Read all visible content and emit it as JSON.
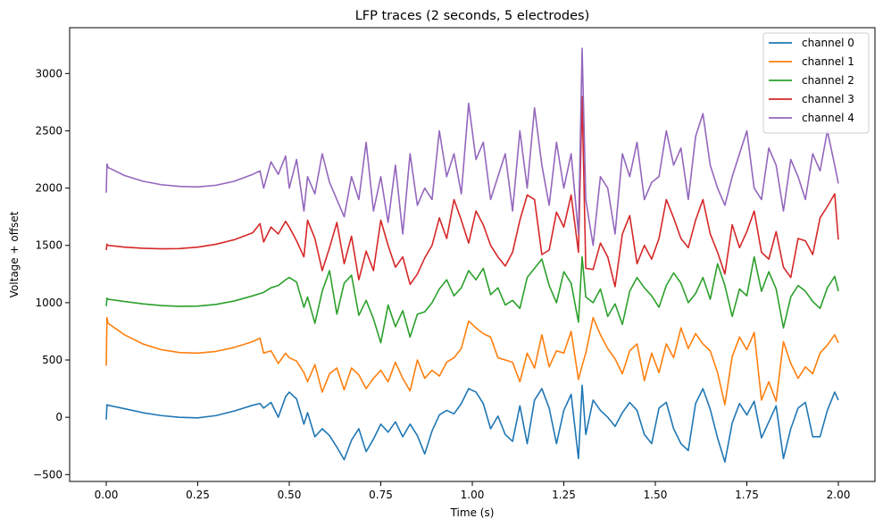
{
  "chart_data": {
    "type": "line",
    "title": "LFP traces (2 seconds, 5 electrodes)",
    "xlabel": "Time (s)",
    "ylabel": "Voltage + offset",
    "xlim": [
      -0.1,
      2.1
    ],
    "ylim": [
      -560,
      3400
    ],
    "xticks": [
      0.0,
      0.25,
      0.5,
      0.75,
      1.0,
      1.25,
      1.5,
      1.75,
      2.0
    ],
    "xtick_labels": [
      "0.00",
      "0.25",
      "0.50",
      "0.75",
      "1.00",
      "1.25",
      "1.50",
      "1.75",
      "2.00"
    ],
    "yticks": [
      -500,
      0,
      500,
      1000,
      1500,
      2000,
      2500,
      3000
    ],
    "ytick_labels": [
      "−500",
      "0",
      "500",
      "1000",
      "1500",
      "2000",
      "2500",
      "3000"
    ],
    "grid": false,
    "legend_position": "top-right",
    "series": [
      {
        "name": "channel 0",
        "color": "#1f77b4",
        "x": [
          0.0,
          0.002,
          0.005,
          0.05,
          0.1,
          0.15,
          0.2,
          0.25,
          0.3,
          0.35,
          0.4,
          0.42,
          0.43,
          0.45,
          0.47,
          0.49,
          0.5,
          0.52,
          0.54,
          0.55,
          0.57,
          0.59,
          0.61,
          0.63,
          0.65,
          0.67,
          0.69,
          0.71,
          0.73,
          0.75,
          0.77,
          0.79,
          0.81,
          0.83,
          0.85,
          0.87,
          0.89,
          0.91,
          0.93,
          0.95,
          0.97,
          0.99,
          1.01,
          1.03,
          1.05,
          1.07,
          1.09,
          1.11,
          1.13,
          1.15,
          1.17,
          1.19,
          1.21,
          1.23,
          1.25,
          1.27,
          1.29,
          1.3,
          1.31,
          1.33,
          1.35,
          1.37,
          1.39,
          1.41,
          1.43,
          1.45,
          1.47,
          1.49,
          1.51,
          1.53,
          1.55,
          1.57,
          1.59,
          1.61,
          1.63,
          1.65,
          1.67,
          1.69,
          1.71,
          1.73,
          1.75,
          1.77,
          1.79,
          1.81,
          1.83,
          1.85,
          1.87,
          1.89,
          1.91,
          1.93,
          1.95,
          1.97,
          1.99,
          2.0
        ],
        "y": [
          -20,
          110,
          105,
          75,
          40,
          15,
          0,
          -5,
          15,
          55,
          105,
          120,
          80,
          130,
          0,
          180,
          220,
          160,
          -60,
          40,
          -170,
          -100,
          -160,
          -260,
          -370,
          -200,
          -100,
          -300,
          -190,
          -60,
          -130,
          -40,
          -170,
          -60,
          -160,
          -320,
          -120,
          20,
          60,
          30,
          120,
          250,
          220,
          120,
          -100,
          10,
          -150,
          -210,
          100,
          -230,
          150,
          250,
          80,
          -230,
          60,
          200,
          -360,
          280,
          -150,
          150,
          60,
          0,
          -80,
          40,
          130,
          60,
          -150,
          -230,
          80,
          130,
          -100,
          -230,
          -290,
          120,
          250,
          70,
          -180,
          -390,
          -50,
          120,
          20,
          140,
          -180,
          -40,
          100,
          -360,
          -100,
          80,
          130,
          -170,
          -170,
          60,
          220,
          150
        ]
      },
      {
        "name": "channel 1",
        "color": "#ff7f0e",
        "x": [
          0.0,
          0.002,
          0.005,
          0.05,
          0.1,
          0.15,
          0.2,
          0.25,
          0.3,
          0.35,
          0.4,
          0.42,
          0.43,
          0.45,
          0.47,
          0.49,
          0.5,
          0.52,
          0.54,
          0.55,
          0.57,
          0.59,
          0.61,
          0.63,
          0.65,
          0.67,
          0.69,
          0.71,
          0.73,
          0.75,
          0.77,
          0.79,
          0.81,
          0.83,
          0.85,
          0.87,
          0.89,
          0.91,
          0.93,
          0.95,
          0.97,
          0.99,
          1.01,
          1.03,
          1.05,
          1.07,
          1.09,
          1.11,
          1.13,
          1.15,
          1.17,
          1.19,
          1.21,
          1.23,
          1.25,
          1.27,
          1.29,
          1.3,
          1.31,
          1.33,
          1.35,
          1.37,
          1.39,
          1.41,
          1.43,
          1.45,
          1.47,
          1.49,
          1.51,
          1.53,
          1.55,
          1.57,
          1.59,
          1.61,
          1.63,
          1.65,
          1.67,
          1.69,
          1.71,
          1.73,
          1.75,
          1.77,
          1.79,
          1.81,
          1.83,
          1.85,
          1.87,
          1.89,
          1.91,
          1.93,
          1.95,
          1.97,
          1.99,
          2.0
        ],
        "y": [
          450,
          870,
          820,
          720,
          640,
          590,
          565,
          560,
          575,
          610,
          660,
          690,
          560,
          580,
          470,
          560,
          520,
          490,
          390,
          310,
          460,
          220,
          380,
          430,
          240,
          430,
          370,
          250,
          340,
          410,
          310,
          480,
          340,
          230,
          500,
          340,
          410,
          360,
          480,
          520,
          600,
          840,
          780,
          730,
          700,
          520,
          500,
          480,
          310,
          560,
          430,
          720,
          440,
          580,
          560,
          750,
          330,
          450,
          560,
          870,
          720,
          600,
          510,
          380,
          580,
          640,
          320,
          560,
          390,
          640,
          520,
          780,
          600,
          730,
          640,
          580,
          390,
          110,
          530,
          700,
          590,
          740,
          150,
          310,
          140,
          660,
          470,
          340,
          440,
          380,
          560,
          630,
          720,
          650
        ]
      },
      {
        "name": "channel 2",
        "color": "#2ca02c",
        "x": [
          0.0,
          0.002,
          0.005,
          0.05,
          0.1,
          0.15,
          0.2,
          0.25,
          0.3,
          0.35,
          0.4,
          0.42,
          0.43,
          0.45,
          0.47,
          0.49,
          0.5,
          0.52,
          0.54,
          0.55,
          0.57,
          0.59,
          0.61,
          0.63,
          0.65,
          0.67,
          0.69,
          0.71,
          0.73,
          0.75,
          0.77,
          0.79,
          0.81,
          0.83,
          0.85,
          0.87,
          0.89,
          0.91,
          0.93,
          0.95,
          0.97,
          0.99,
          1.01,
          1.03,
          1.05,
          1.07,
          1.09,
          1.11,
          1.13,
          1.15,
          1.17,
          1.19,
          1.21,
          1.23,
          1.25,
          1.27,
          1.29,
          1.3,
          1.31,
          1.33,
          1.35,
          1.37,
          1.39,
          1.41,
          1.43,
          1.45,
          1.47,
          1.49,
          1.51,
          1.53,
          1.55,
          1.57,
          1.59,
          1.61,
          1.63,
          1.65,
          1.67,
          1.69,
          1.71,
          1.73,
          1.75,
          1.77,
          1.79,
          1.81,
          1.83,
          1.85,
          1.87,
          1.89,
          1.91,
          1.93,
          1.95,
          1.97,
          1.99,
          2.0
        ],
        "y": [
          970,
          1040,
          1030,
          1010,
          990,
          975,
          968,
          970,
          985,
          1015,
          1060,
          1080,
          1090,
          1130,
          1150,
          1200,
          1220,
          1180,
          960,
          1050,
          820,
          1100,
          1280,
          900,
          1170,
          1240,
          890,
          1020,
          860,
          650,
          980,
          790,
          930,
          700,
          900,
          920,
          1000,
          1120,
          1200,
          1060,
          1130,
          1280,
          1200,
          1300,
          1070,
          1130,
          980,
          1020,
          950,
          1220,
          1300,
          1380,
          1150,
          1000,
          1270,
          1170,
          830,
          1400,
          1050,
          1000,
          1120,
          880,
          990,
          810,
          1100,
          1220,
          1130,
          1060,
          960,
          1150,
          1260,
          1170,
          1000,
          1080,
          1220,
          1030,
          1340,
          1150,
          880,
          1120,
          1060,
          1400,
          1100,
          1270,
          1120,
          780,
          1050,
          1150,
          1100,
          1010,
          950,
          1130,
          1230,
          1100
        ]
      },
      {
        "name": "channel 3",
        "color": "#d62728",
        "x": [
          0.0,
          0.002,
          0.005,
          0.05,
          0.1,
          0.15,
          0.2,
          0.25,
          0.3,
          0.35,
          0.4,
          0.42,
          0.43,
          0.45,
          0.47,
          0.49,
          0.5,
          0.52,
          0.54,
          0.55,
          0.57,
          0.59,
          0.61,
          0.63,
          0.65,
          0.67,
          0.69,
          0.71,
          0.73,
          0.75,
          0.77,
          0.79,
          0.81,
          0.83,
          0.85,
          0.87,
          0.89,
          0.91,
          0.93,
          0.95,
          0.97,
          0.99,
          1.01,
          1.03,
          1.05,
          1.07,
          1.09,
          1.11,
          1.13,
          1.15,
          1.17,
          1.19,
          1.21,
          1.23,
          1.25,
          1.27,
          1.29,
          1.3,
          1.31,
          1.33,
          1.35,
          1.37,
          1.39,
          1.41,
          1.43,
          1.45,
          1.47,
          1.49,
          1.51,
          1.53,
          1.55,
          1.57,
          1.59,
          1.61,
          1.63,
          1.65,
          1.67,
          1.69,
          1.71,
          1.73,
          1.75,
          1.77,
          1.79,
          1.81,
          1.83,
          1.85,
          1.87,
          1.89,
          1.91,
          1.93,
          1.95,
          1.97,
          1.99,
          2.0
        ],
        "y": [
          1460,
          1510,
          1500,
          1485,
          1475,
          1470,
          1472,
          1485,
          1510,
          1550,
          1610,
          1690,
          1530,
          1660,
          1600,
          1710,
          1660,
          1540,
          1400,
          1720,
          1560,
          1280,
          1480,
          1700,
          1340,
          1580,
          1200,
          1450,
          1280,
          1720,
          1500,
          1310,
          1400,
          1160,
          1250,
          1390,
          1500,
          1740,
          1560,
          1900,
          1720,
          1520,
          1800,
          1680,
          1500,
          1400,
          1320,
          1440,
          1720,
          1940,
          1900,
          1420,
          1460,
          1790,
          1660,
          1940,
          1440,
          2800,
          1300,
          1290,
          1520,
          1400,
          1140,
          1600,
          1760,
          1340,
          1500,
          1380,
          1560,
          1900,
          1740,
          1560,
          1480,
          1720,
          1900,
          1600,
          1440,
          1250,
          1680,
          1480,
          1620,
          1800,
          1440,
          1380,
          1620,
          1310,
          1220,
          1560,
          1540,
          1420,
          1740,
          1840,
          1950,
          1550
        ]
      },
      {
        "name": "channel 4",
        "color": "#9467bd",
        "x": [
          0.0,
          0.002,
          0.005,
          0.05,
          0.1,
          0.15,
          0.2,
          0.25,
          0.3,
          0.35,
          0.4,
          0.42,
          0.43,
          0.45,
          0.47,
          0.49,
          0.5,
          0.52,
          0.54,
          0.55,
          0.57,
          0.59,
          0.61,
          0.63,
          0.65,
          0.67,
          0.69,
          0.71,
          0.73,
          0.75,
          0.77,
          0.79,
          0.81,
          0.83,
          0.85,
          0.87,
          0.89,
          0.91,
          0.93,
          0.95,
          0.97,
          0.99,
          1.01,
          1.03,
          1.05,
          1.07,
          1.09,
          1.11,
          1.13,
          1.15,
          1.17,
          1.19,
          1.21,
          1.23,
          1.25,
          1.27,
          1.29,
          1.3,
          1.31,
          1.33,
          1.35,
          1.37,
          1.39,
          1.41,
          1.43,
          1.45,
          1.47,
          1.49,
          1.51,
          1.53,
          1.55,
          1.57,
          1.59,
          1.61,
          1.63,
          1.65,
          1.67,
          1.69,
          1.71,
          1.73,
          1.75,
          1.77,
          1.79,
          1.81,
          1.83,
          1.85,
          1.87,
          1.89,
          1.91,
          1.93,
          1.95,
          1.97,
          1.99,
          2.0
        ],
        "y": [
          1960,
          2210,
          2180,
          2110,
          2060,
          2030,
          2015,
          2010,
          2025,
          2060,
          2120,
          2150,
          2000,
          2230,
          2120,
          2280,
          2000,
          2250,
          1800,
          2100,
          1950,
          2300,
          2050,
          1900,
          1750,
          2100,
          1900,
          2400,
          1800,
          2100,
          1700,
          2200,
          1600,
          2300,
          1850,
          2000,
          1900,
          2500,
          2100,
          2300,
          1950,
          2740,
          2250,
          2400,
          1900,
          2100,
          2300,
          1800,
          2500,
          2000,
          2700,
          2200,
          1850,
          2400,
          2000,
          2300,
          1600,
          3220,
          1900,
          1500,
          2100,
          2000,
          1600,
          2300,
          2100,
          2400,
          1900,
          2050,
          2100,
          2500,
          2200,
          2350,
          1900,
          2450,
          2650,
          2200,
          2000,
          1850,
          2100,
          2300,
          2500,
          2000,
          1900,
          2350,
          2200,
          1800,
          2250,
          2100,
          1900,
          2300,
          2150,
          2500,
          2200,
          2040
        ]
      }
    ]
  }
}
